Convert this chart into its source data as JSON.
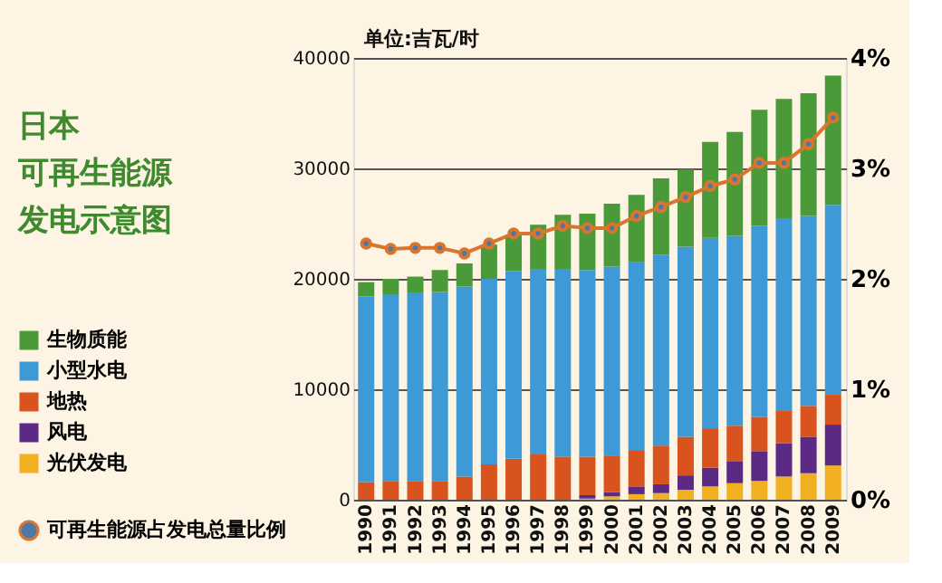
{
  "chart_data": {
    "type": "bar",
    "stacked": true,
    "title": "日本",
    "subtitle": "可再生能源发电示意图",
    "categories": [
      "1990",
      "1991",
      "1992",
      "1993",
      "1994",
      "1995",
      "1996",
      "1997",
      "1998",
      "1999",
      "2000",
      "2001",
      "2002",
      "2003",
      "2004",
      "2005",
      "2006",
      "2007",
      "2008",
      "2009"
    ],
    "series": [
      {
        "name": "光伏发电",
        "color": "#f0b020",
        "values": [
          0,
          0,
          0,
          0,
          0,
          0,
          0,
          0,
          0,
          100,
          300,
          500,
          600,
          900,
          1200,
          1500,
          1700,
          2100,
          2400,
          3100
        ]
      },
      {
        "name": "风电",
        "color": "#5b2a84",
        "values": [
          0,
          0,
          0,
          0,
          0,
          0,
          0,
          0,
          0,
          300,
          400,
          700,
          800,
          1300,
          1700,
          2000,
          2700,
          3000,
          3300,
          3700
        ]
      },
      {
        "name": "地热",
        "color": "#d9531e",
        "values": [
          1600,
          1700,
          1700,
          1700,
          2100,
          3200,
          3700,
          4100,
          3900,
          3500,
          3300,
          3300,
          3500,
          3500,
          3500,
          3200,
          3100,
          3000,
          2800,
          2700
        ]
      },
      {
        "name": "小型水电",
        "color": "#3d9ad6",
        "values": [
          16800,
          16900,
          17000,
          17100,
          17200,
          16800,
          17000,
          16800,
          17000,
          16900,
          17100,
          17000,
          17300,
          17200,
          17300,
          17200,
          17300,
          17400,
          17200,
          17200
        ]
      },
      {
        "name": "生物质能",
        "color": "#4a9a3a",
        "values": [
          1300,
          1400,
          1500,
          2000,
          2100,
          3100,
          3300,
          4000,
          4900,
          5100,
          5700,
          6100,
          6900,
          7000,
          8700,
          9400,
          10500,
          10800,
          11100,
          11700
        ]
      },
      {
        "name": "可再生能源占发电总量比例",
        "type": "line",
        "axis": "y2",
        "color": "#d9752e",
        "marker": "circle",
        "line_style": "solid",
        "values": [
          2.32,
          2.27,
          2.28,
          2.28,
          2.23,
          2.32,
          2.41,
          2.41,
          2.48,
          2.46,
          2.46,
          2.57,
          2.65,
          2.74,
          2.84,
          2.9,
          3.05,
          3.05,
          3.22,
          3.46
        ]
      }
    ],
    "ylim": [
      0,
      40000
    ],
    "yticks": [
      0,
      10000,
      20000,
      30000,
      40000
    ],
    "y2lim": [
      0,
      4
    ],
    "y2ticks": [
      {
        "value": 0,
        "label": "0%"
      },
      {
        "value": 1,
        "label": "1%"
      },
      {
        "value": 2,
        "label": "2%"
      },
      {
        "value": 3,
        "label": "3%"
      },
      {
        "value": 4,
        "label": "4%"
      }
    ],
    "annotations": [
      "单位:吉瓦/时"
    ],
    "grid": "y",
    "legend": "left"
  }
}
